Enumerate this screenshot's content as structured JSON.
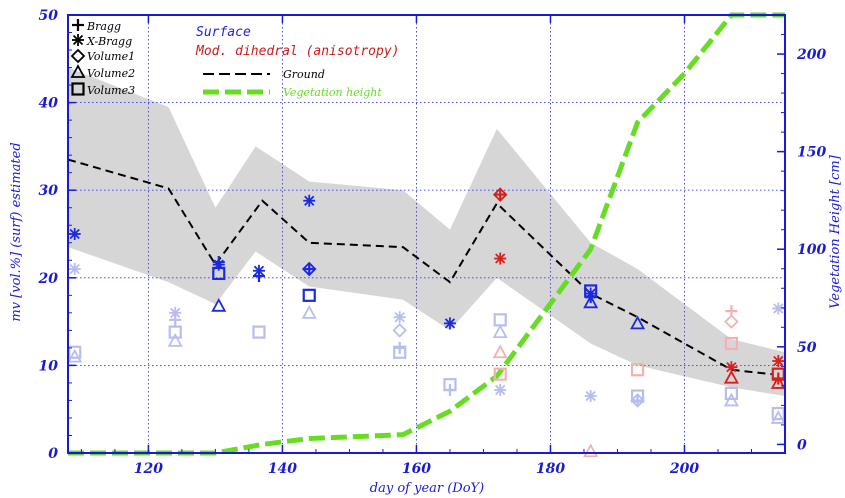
{
  "colors": {
    "axis": "#1a1ad6",
    "grid": "#3b3bd8",
    "band": "#d6d6d6",
    "ground": "#000000",
    "vegetation": "#66dd22",
    "surface": "#1a2ae0",
    "surface_faded": "#b8bdf0",
    "dihedral": "#dd1c1c",
    "dihedral_faded": "#f4b0b0",
    "legend_surface": "#2222dd",
    "legend_dihedral": "#cc1c1c",
    "legend_veg": "#66dd22"
  },
  "chart_data": {
    "type": "scatter",
    "title": "",
    "xlabel": "day of year (DoY)",
    "ylabel": "mv [vol.%] (surf) estimated",
    "ylabel_right": "Vegetation Height [cm]",
    "xlim": [
      108,
      215
    ],
    "ylim": [
      0,
      50
    ],
    "ylim_right": [
      -4.4,
      220
    ],
    "x_ticks": [
      "120",
      "140",
      "160",
      "180",
      "200"
    ],
    "y_ticks": [
      "0",
      "10",
      "20",
      "30",
      "40",
      "50"
    ],
    "y_ticks_right": [
      "0",
      "50",
      "100",
      "150",
      "200"
    ],
    "grid": true,
    "legend": {
      "markers": [
        "Bragg",
        "X-Bragg",
        "Volume1",
        "Volume2",
        "Volume3"
      ],
      "surface": "Surface",
      "dihedral": "Mod. dihedral (anisotropy)",
      "ground": "Ground",
      "vegetation": "Vegetation height"
    },
    "band": {
      "x": [
        108,
        123,
        130,
        136,
        144,
        158,
        165,
        172,
        186,
        193,
        207,
        215
      ],
      "upper": [
        44,
        39.5,
        28,
        35,
        31,
        30,
        25.5,
        37,
        24,
        21,
        13,
        11.5
      ],
      "lower": [
        23.5,
        19.5,
        17,
        23,
        19,
        17.5,
        14,
        20,
        12.5,
        10,
        7.5,
        6.5
      ]
    },
    "series": [
      {
        "name": "Ground",
        "x": [
          108,
          123,
          130,
          137,
          144,
          158,
          165,
          172,
          186,
          193,
          200,
          207,
          213
        ],
        "values": [
          33.5,
          30.2,
          21.5,
          28.8,
          24,
          23.5,
          19.5,
          28.5,
          18.2,
          15.5,
          12.5,
          9.5,
          9
        ]
      },
      {
        "name": "Vegetation height",
        "axis": "right",
        "x": [
          108,
          123,
          130,
          137,
          144,
          158,
          165,
          172,
          186,
          193,
          200,
          207,
          215
        ],
        "values": [
          -4.4,
          -4.4,
          -4.4,
          0,
          3,
          5,
          17,
          35,
          100,
          165,
          190,
          220,
          220
        ]
      }
    ],
    "markers": [
      {
        "x": 109,
        "y": 25,
        "shape": "xbragg",
        "group": "surface"
      },
      {
        "x": 109,
        "y": 21,
        "shape": "xbragg",
        "group": "surface_faded"
      },
      {
        "x": 109,
        "y": 11.5,
        "shape": "square",
        "group": "surface_faded"
      },
      {
        "x": 109,
        "y": 11,
        "shape": "triangle",
        "group": "surface_faded"
      },
      {
        "x": 124,
        "y": 16,
        "shape": "xbragg",
        "group": "surface_faded"
      },
      {
        "x": 124,
        "y": 15.2,
        "shape": "bragg",
        "group": "surface_faded"
      },
      {
        "x": 124,
        "y": 13.8,
        "shape": "square",
        "group": "surface_faded"
      },
      {
        "x": 124,
        "y": 12.8,
        "shape": "triangle",
        "group": "surface_faded"
      },
      {
        "x": 130.5,
        "y": 21.8,
        "shape": "bragg",
        "group": "surface"
      },
      {
        "x": 130.5,
        "y": 21.5,
        "shape": "xbragg",
        "group": "surface"
      },
      {
        "x": 130.5,
        "y": 20.5,
        "shape": "square",
        "group": "surface"
      },
      {
        "x": 130.5,
        "y": 16.8,
        "shape": "triangle",
        "group": "surface"
      },
      {
        "x": 136.5,
        "y": 20.8,
        "shape": "xbragg",
        "group": "surface"
      },
      {
        "x": 136.5,
        "y": 20.2,
        "shape": "bragg",
        "group": "surface"
      },
      {
        "x": 136.5,
        "y": 13.8,
        "shape": "square",
        "group": "surface_faded"
      },
      {
        "x": 144,
        "y": 28.8,
        "shape": "xbragg",
        "group": "surface"
      },
      {
        "x": 144,
        "y": 21,
        "shape": "diamond",
        "group": "surface"
      },
      {
        "x": 144,
        "y": 21,
        "shape": "bragg",
        "group": "surface"
      },
      {
        "x": 144,
        "y": 18,
        "shape": "square",
        "group": "surface"
      },
      {
        "x": 144,
        "y": 16,
        "shape": "triangle",
        "group": "surface_faded"
      },
      {
        "x": 157.5,
        "y": 15.5,
        "shape": "xbragg",
        "group": "surface_faded"
      },
      {
        "x": 157.5,
        "y": 14,
        "shape": "diamond",
        "group": "surface_faded"
      },
      {
        "x": 157.5,
        "y": 12,
        "shape": "bragg",
        "group": "surface_faded"
      },
      {
        "x": 157.5,
        "y": 11.5,
        "shape": "square",
        "group": "surface_faded"
      },
      {
        "x": 165,
        "y": 14.8,
        "shape": "xbragg",
        "group": "surface"
      },
      {
        "x": 165,
        "y": 7.8,
        "shape": "square",
        "group": "surface_faded"
      },
      {
        "x": 165,
        "y": 7.2,
        "shape": "bragg",
        "group": "surface_faded"
      },
      {
        "x": 172.5,
        "y": 29.5,
        "shape": "diamond",
        "group": "dihedral"
      },
      {
        "x": 172.5,
        "y": 29.5,
        "shape": "bragg",
        "group": "dihedral"
      },
      {
        "x": 172.5,
        "y": 22.2,
        "shape": "xbragg",
        "group": "dihedral"
      },
      {
        "x": 172.5,
        "y": 15.2,
        "shape": "square",
        "group": "surface_faded"
      },
      {
        "x": 172.5,
        "y": 13.8,
        "shape": "triangle",
        "group": "surface_faded"
      },
      {
        "x": 172.5,
        "y": 11.5,
        "shape": "triangle",
        "group": "dihedral_faded"
      },
      {
        "x": 172.5,
        "y": 9,
        "shape": "square",
        "group": "dihedral_faded"
      },
      {
        "x": 172.5,
        "y": 7.2,
        "shape": "xbragg",
        "group": "surface_faded"
      },
      {
        "x": 186,
        "y": 18.5,
        "shape": "square",
        "group": "surface"
      },
      {
        "x": 186,
        "y": 18.2,
        "shape": "xbragg",
        "group": "surface"
      },
      {
        "x": 186,
        "y": 17.8,
        "shape": "bragg",
        "group": "surface"
      },
      {
        "x": 186,
        "y": 17.2,
        "shape": "triangle",
        "group": "surface"
      },
      {
        "x": 186,
        "y": 6.5,
        "shape": "xbragg",
        "group": "surface_faded"
      },
      {
        "x": 186,
        "y": 0.2,
        "shape": "triangle",
        "group": "dihedral_faded"
      },
      {
        "x": 193,
        "y": 14.8,
        "shape": "triangle",
        "group": "surface"
      },
      {
        "x": 193,
        "y": 9.5,
        "shape": "square",
        "group": "dihedral_faded"
      },
      {
        "x": 193,
        "y": 6.5,
        "shape": "square",
        "group": "surface_faded"
      },
      {
        "x": 193,
        "y": 6,
        "shape": "diamond",
        "group": "surface_faded"
      },
      {
        "x": 193,
        "y": 6,
        "shape": "bragg",
        "group": "surface_faded"
      },
      {
        "x": 207,
        "y": 16.2,
        "shape": "bragg",
        "group": "dihedral_faded"
      },
      {
        "x": 207,
        "y": 15,
        "shape": "diamond",
        "group": "dihedral_faded"
      },
      {
        "x": 207,
        "y": 12.5,
        "shape": "square",
        "group": "dihedral_faded"
      },
      {
        "x": 207,
        "y": 9.8,
        "shape": "xbragg",
        "group": "dihedral"
      },
      {
        "x": 207,
        "y": 8.6,
        "shape": "triangle",
        "group": "dihedral"
      },
      {
        "x": 207,
        "y": 6.8,
        "shape": "square",
        "group": "surface_faded"
      },
      {
        "x": 207,
        "y": 6,
        "shape": "triangle",
        "group": "surface_faded"
      },
      {
        "x": 214,
        "y": 16.5,
        "shape": "xbragg",
        "group": "surface_faded"
      },
      {
        "x": 214,
        "y": 10.5,
        "shape": "xbragg",
        "group": "dihedral"
      },
      {
        "x": 214,
        "y": 9,
        "shape": "square",
        "group": "dihedral"
      },
      {
        "x": 214,
        "y": 8.5,
        "shape": "bragg",
        "group": "dihedral"
      },
      {
        "x": 214,
        "y": 8,
        "shape": "triangle",
        "group": "dihedral"
      },
      {
        "x": 214,
        "y": 4.5,
        "shape": "square",
        "group": "surface_faded"
      },
      {
        "x": 214,
        "y": 4,
        "shape": "triangle",
        "group": "surface_faded"
      }
    ]
  }
}
